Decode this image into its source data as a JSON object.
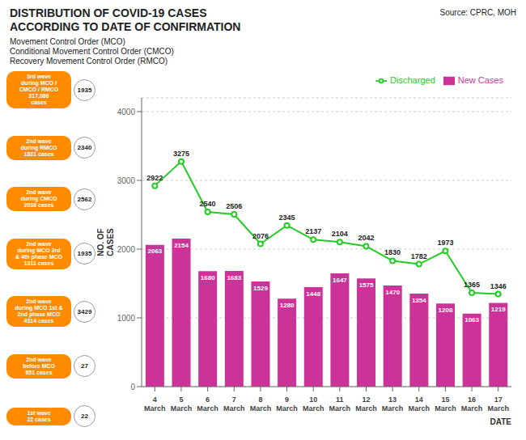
{
  "chart_data": {
    "type": "bar",
    "title": "DISTRIBUTION OF COVID-19 CASES\nACCORDING TO DATE OF CONFIRMATION",
    "subtitle": "Movement Control Order (MCO)\nConditional Movement Control Order (CMCO)\nRecovery Movement Control Order (RMCO)",
    "source": "Source: CPRC, MOH",
    "x_label": "DATE",
    "y_label": "NO. OF\nCASES",
    "categories": [
      "4\nMarch",
      "5\nMarch",
      "6\nMarch",
      "7\nMarch",
      "8\nMarch",
      "9\nMarch",
      "10\nMarch",
      "11\nMarch",
      "12\nMarch",
      "13\nMarch",
      "14\nMarch",
      "15\nMarch",
      "16\nMarch",
      "17\nMarch"
    ],
    "series": [
      {
        "name": "New Cases",
        "type": "bar",
        "color": "#CC3399",
        "values": [
          2063,
          2154,
          1680,
          1683,
          1529,
          1280,
          1448,
          1647,
          1575,
          1470,
          1354,
          1208,
          1063,
          1219
        ]
      },
      {
        "name": "Discharged",
        "type": "line",
        "color": "#22CC22",
        "values": [
          2922,
          3275,
          2540,
          2506,
          2076,
          2345,
          2137,
          2104,
          2042,
          1830,
          1782,
          1973,
          1365,
          1346
        ]
      }
    ],
    "ylim": [
      0,
      4200
    ],
    "yticks": [
      0,
      1000,
      2000,
      3000,
      4000
    ],
    "grid": true,
    "legend": "upper right",
    "data_labels": true,
    "annotations": [
      {
        "text": "3rd wave\nduring MCO /\nCMCO / RMCO\n317,086\ncases",
        "value": 1935
      },
      {
        "text": "2nd wave\nduring RMCO\n1831 cases",
        "value": 2340
      },
      {
        "text": "2nd wave\nduring CMCO\n2038 cases",
        "value": 2562
      },
      {
        "text": "2nd wave\nduring MCO 3rd\n& 4th phase MCO\n1311 cases",
        "value": 1935
      },
      {
        "text": "2nd wave\nduring MCO 1st &\n2nd phase MCO\n4314 cases",
        "value": 3429
      },
      {
        "text": "2nd wave\nbefore MCO\n651 cases",
        "value": 27
      },
      {
        "text": "1st wave\n22 cases",
        "value": 22
      }
    ]
  }
}
